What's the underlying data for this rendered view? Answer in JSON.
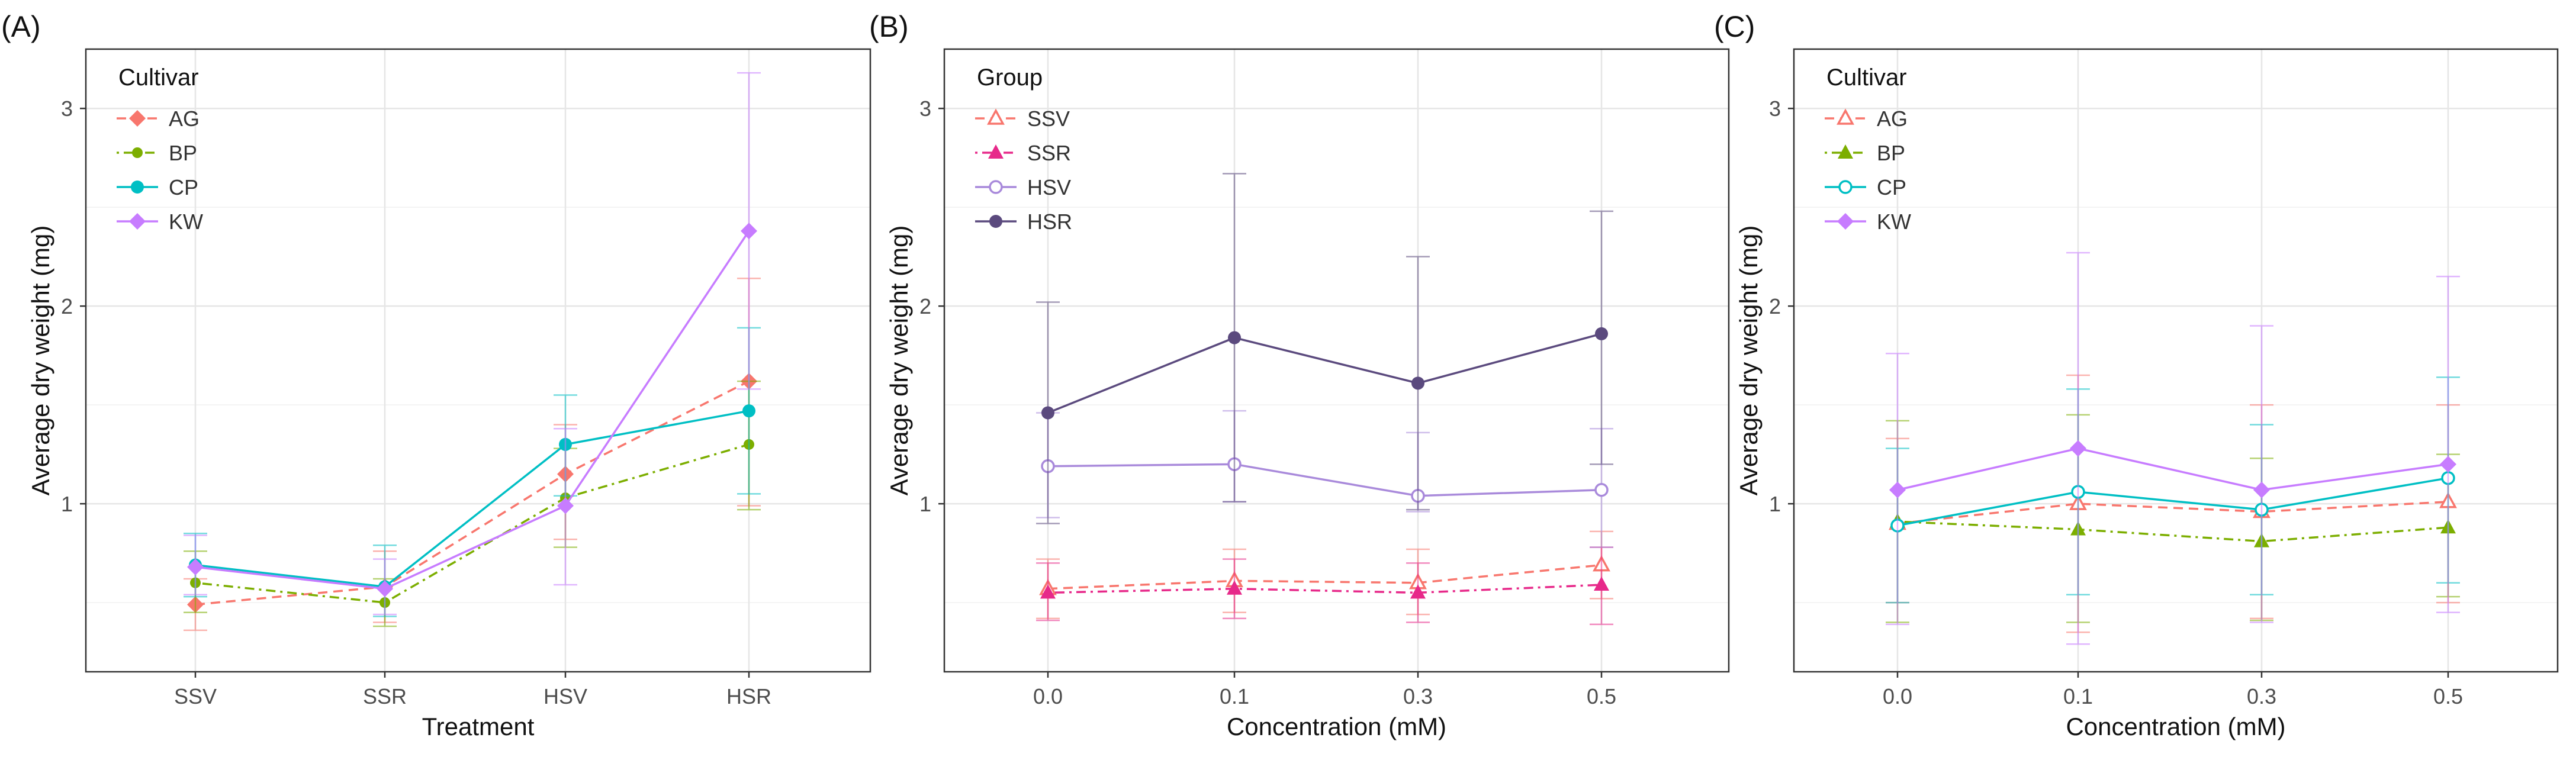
{
  "chart_data": [
    {
      "panel_label": "(A)",
      "type": "line",
      "xlabel": "Treatment",
      "ylabel": "Average dry weight (mg)",
      "categories": [
        "SSV",
        "SSR",
        "HSV",
        "HSR"
      ],
      "ylim": [
        0.15,
        3.3
      ],
      "yticks": [
        1,
        2,
        3
      ],
      "ytick_labels": [
        "1",
        "2",
        "3"
      ],
      "grid": true,
      "legend_title": "Cultivar",
      "legend_position": "top-left",
      "series": [
        {
          "name": "AG",
          "color": "#F8766D",
          "dash": "dashed",
          "marker": "diamond",
          "values": [
            0.49,
            0.58,
            1.15,
            1.62
          ],
          "err_lo": [
            0.36,
            0.4,
            0.82,
            0.99
          ],
          "err_hi": [
            0.62,
            0.76,
            1.4,
            2.14
          ]
        },
        {
          "name": "BP",
          "color": "#7CAE00",
          "dash": "dotdash",
          "marker": "circle-small",
          "values": [
            0.6,
            0.5,
            1.03,
            1.3
          ],
          "err_lo": [
            0.45,
            0.38,
            0.78,
            0.97
          ],
          "err_hi": [
            0.76,
            0.62,
            1.28,
            1.62
          ]
        },
        {
          "name": "CP",
          "color": "#00BFC4",
          "dash": "solid",
          "marker": "circle",
          "values": [
            0.69,
            0.58,
            1.3,
            1.47
          ],
          "err_lo": [
            0.53,
            0.43,
            1.04,
            1.05
          ],
          "err_hi": [
            0.85,
            0.79,
            1.55,
            1.89
          ]
        },
        {
          "name": "KW",
          "color": "#C77CFF",
          "dash": "solid",
          "marker": "diamond",
          "values": [
            0.68,
            0.57,
            0.99,
            2.38
          ],
          "err_lo": [
            0.54,
            0.44,
            0.59,
            1.58
          ],
          "err_hi": [
            0.84,
            0.72,
            1.38,
            3.18
          ]
        }
      ]
    },
    {
      "panel_label": "(B)",
      "type": "line",
      "xlabel": "Concentration (mM)",
      "ylabel": "Average dry weight (mg)",
      "categories": [
        "0.0",
        "0.1",
        "0.3",
        "0.5"
      ],
      "ylim": [
        0.15,
        3.3
      ],
      "yticks": [
        1,
        2,
        3
      ],
      "ytick_labels": [
        "1",
        "2",
        "3"
      ],
      "grid": true,
      "legend_title": "Group",
      "legend_position": "top-left",
      "series": [
        {
          "name": "SSV",
          "color": "#F8766D",
          "dash": "dashed",
          "marker": "triangle-open",
          "values": [
            0.57,
            0.61,
            0.6,
            0.69
          ],
          "err_lo": [
            0.42,
            0.45,
            0.44,
            0.52
          ],
          "err_hi": [
            0.72,
            0.77,
            0.77,
            0.86
          ]
        },
        {
          "name": "SSR",
          "color": "#E7298A",
          "dash": "dotdash",
          "marker": "triangle",
          "values": [
            0.55,
            0.57,
            0.55,
            0.59
          ],
          "err_lo": [
            0.41,
            0.42,
            0.4,
            0.39
          ],
          "err_hi": [
            0.7,
            0.72,
            0.7,
            0.78
          ]
        },
        {
          "name": "HSV",
          "color": "#A98ADB",
          "dash": "solid",
          "marker": "circle-open",
          "values": [
            1.19,
            1.2,
            1.04,
            1.07
          ],
          "err_lo": [
            0.93,
            1.01,
            0.96,
            0.78
          ],
          "err_hi": [
            1.46,
            1.47,
            1.36,
            1.38
          ]
        },
        {
          "name": "HSR",
          "color": "#5B4A7E",
          "dash": "solid",
          "marker": "circle",
          "values": [
            1.46,
            1.84,
            1.61,
            1.86
          ],
          "err_lo": [
            0.9,
            1.01,
            0.97,
            1.2
          ],
          "err_hi": [
            2.02,
            2.67,
            2.25,
            2.48
          ]
        }
      ]
    },
    {
      "panel_label": "(C)",
      "type": "line",
      "xlabel": "Concentration (mM)",
      "ylabel": "Average dry weight (mg)",
      "categories": [
        "0.0",
        "0.1",
        "0.3",
        "0.5"
      ],
      "ylim": [
        0.15,
        3.3
      ],
      "yticks": [
        1,
        2,
        3
      ],
      "ytick_labels": [
        "1",
        "2",
        "3"
      ],
      "grid": true,
      "legend_title": "Cultivar",
      "legend_position": "top-left",
      "series": [
        {
          "name": "AG",
          "color": "#F8766D",
          "dash": "dashed",
          "marker": "triangle-open",
          "values": [
            0.9,
            1.0,
            0.96,
            1.01
          ],
          "err_lo": [
            0.5,
            0.35,
            0.42,
            0.5
          ],
          "err_hi": [
            1.33,
            1.65,
            1.5,
            1.5
          ]
        },
        {
          "name": "BP",
          "color": "#7CAE00",
          "dash": "dotdash",
          "marker": "triangle",
          "values": [
            0.91,
            0.87,
            0.81,
            0.88
          ],
          "err_lo": [
            0.4,
            0.4,
            0.41,
            0.53
          ],
          "err_hi": [
            1.42,
            1.45,
            1.23,
            1.25
          ]
        },
        {
          "name": "CP",
          "color": "#00BFC4",
          "dash": "solid",
          "marker": "circle-open",
          "values": [
            0.89,
            1.06,
            0.97,
            1.13
          ],
          "err_lo": [
            0.5,
            0.54,
            0.54,
            0.6
          ],
          "err_hi": [
            1.28,
            1.58,
            1.4,
            1.64
          ]
        },
        {
          "name": "KW",
          "color": "#C77CFF",
          "dash": "solid",
          "marker": "diamond",
          "values": [
            1.07,
            1.28,
            1.07,
            1.2
          ],
          "err_lo": [
            0.39,
            0.29,
            0.4,
            0.45
          ],
          "err_hi": [
            1.76,
            2.27,
            1.9,
            2.15
          ]
        }
      ]
    }
  ]
}
